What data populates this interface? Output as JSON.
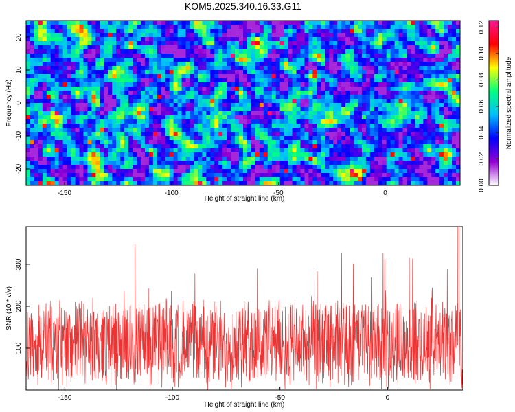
{
  "chart_data": [
    {
      "type": "heatmap",
      "title": "KOM5.2025.340.16.33.G11",
      "xlabel": "Height of straight line (km)",
      "ylabel": "Frequency (Hz)",
      "xlim": [
        -168,
        35
      ],
      "ylim": [
        -25,
        25
      ],
      "x_ticks": [
        -150,
        -100,
        -50,
        0
      ],
      "y_ticks": [
        -20,
        -10,
        0,
        10,
        20
      ],
      "colorbar": {
        "label": "Normalized spectral amplitude",
        "range": [
          0,
          0.125
        ],
        "ticks": [
          "0.00",
          "0.02",
          "0.04",
          "0.06",
          "0.08",
          "0.10",
          "0.12"
        ],
        "tick_values": [
          0,
          0.02,
          0.04,
          0.06,
          0.08,
          0.1,
          0.12
        ],
        "colors": [
          "#ffffff",
          "#9400d3",
          "#0000ff",
          "#00bfff",
          "#00ff80",
          "#ffff00",
          "#ff0000",
          "#ff1493"
        ]
      },
      "summary": "Dense speckled noise field; amplitudes mostly 0.01-0.05 with scattered peaks up to ~0.12"
    },
    {
      "type": "line",
      "xlabel": "Height of straight line (km)",
      "ylabel": "SNR (10 * v/v)",
      "xlim": [
        -168,
        35
      ],
      "ylim": [
        0,
        390
      ],
      "x_ticks": [
        -150,
        -100,
        -50,
        0
      ],
      "y_ticks": [
        100,
        200,
        300
      ],
      "series": [
        {
          "name": "SNR",
          "color": "#ff0000",
          "typical_range": [
            0,
            250
          ],
          "mean": 110,
          "max": 390,
          "max_at_x": 33
        }
      ]
    }
  ]
}
